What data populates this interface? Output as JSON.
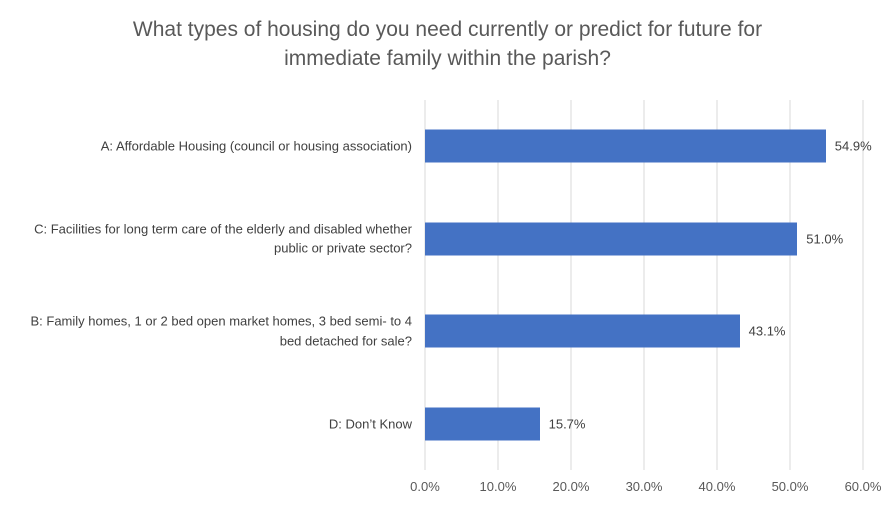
{
  "title": "What types of housing do you need currently or predict for future for immediate family within the parish?",
  "chart_data": {
    "type": "bar",
    "orientation": "horizontal",
    "title": "What types of housing do you need currently or predict for future for immediate family within the parish?",
    "categories": [
      "A: Affordable Housing (council or housing association)",
      "C: Facilities for long term care of the elderly and disabled whether public or private sector?",
      "B: Family homes, 1 or 2 bed open market homes, 3 bed semi- to 4 bed detached for sale?",
      "D: Don’t Know"
    ],
    "values": [
      54.9,
      51.0,
      43.1,
      15.7
    ],
    "data_labels": [
      "54.9%",
      "51.0%",
      "43.1%",
      "15.7%"
    ],
    "xlabel": "",
    "ylabel": "",
    "xlim": [
      0,
      60
    ],
    "x_ticks": [
      0,
      10,
      20,
      30,
      40,
      50,
      60
    ],
    "x_tick_labels": [
      "0.0%",
      "10.0%",
      "20.0%",
      "30.0%",
      "40.0%",
      "50.0%",
      "60.0%"
    ],
    "grid": "vertical-only",
    "legend": "none",
    "colors": {
      "bar": "#4472C4",
      "gridline": "#D9D9D9",
      "title": "#595959",
      "category_label": "#404040",
      "data_label": "#404040",
      "tick_label": "#595959",
      "background": "#FFFFFF"
    }
  }
}
